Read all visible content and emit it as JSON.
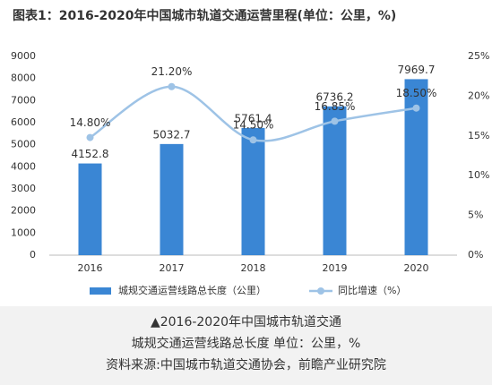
{
  "chart_data": {
    "type": "bar",
    "title": "图表1：2016-2020年中国城市轨道交通运营里程(单位：公里，%)",
    "categories": [
      "2016",
      "2017",
      "2018",
      "2019",
      "2020"
    ],
    "series": [
      {
        "name": "城规交通运营线路总长度（公里）",
        "type": "bar",
        "color": "#3a86d4",
        "values": [
          4152.8,
          5032.7,
          5761.4,
          6736.2,
          7969.7
        ]
      },
      {
        "name": "同比增速（%）",
        "type": "line",
        "axis": "y2",
        "color": "#9ec3e6",
        "values": [
          14.8,
          21.2,
          14.5,
          16.85,
          18.5
        ],
        "value_labels": [
          "14.80%",
          "21.20%",
          "14.50%",
          "16.85%",
          "18.50%"
        ]
      }
    ],
    "ylim": [
      0,
      9000
    ],
    "yticks": [
      0,
      1000,
      2000,
      3000,
      4000,
      5000,
      6000,
      7000,
      8000,
      9000
    ],
    "y2lim": [
      0,
      25
    ],
    "y2ticks": [
      {
        "value": 0,
        "label": "0%"
      },
      {
        "value": 5,
        "label": "5%"
      },
      {
        "value": 10,
        "label": "10%"
      },
      {
        "value": 15,
        "label": "15%"
      },
      {
        "value": 20,
        "label": "20%"
      },
      {
        "value": 25,
        "label": "25%"
      }
    ],
    "grid": false
  },
  "caption": {
    "lines": [
      "▲2016-2020年中国城市轨道交通",
      "城规交通运营线路总长度 单位：公里，%",
      "资料来源:中国城市轨道交通协会，前瞻产业研究院"
    ]
  }
}
